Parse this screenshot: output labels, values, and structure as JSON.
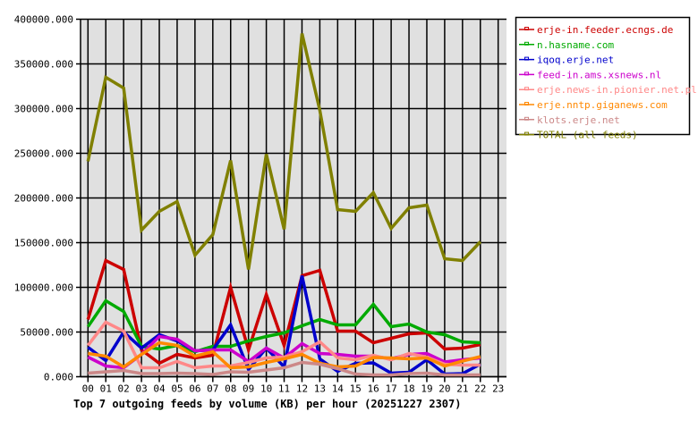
{
  "chart_data": {
    "type": "line",
    "title": "Top 7 outgoing feeds by volume (KB) per hour (20251227 2307)",
    "xlabel": "",
    "ylabel": "",
    "ylim": [
      0,
      400000
    ],
    "y_ticks": [
      "0.000",
      "50000.000",
      "100000.000",
      "150000.000",
      "200000.000",
      "250000.000",
      "300000.000",
      "350000.000",
      "400000.000"
    ],
    "x": [
      "00",
      "01",
      "02",
      "03",
      "04",
      "05",
      "06",
      "07",
      "08",
      "09",
      "10",
      "11",
      "12",
      "13",
      "14",
      "15",
      "16",
      "17",
      "18",
      "19",
      "20",
      "21",
      "22",
      "23"
    ],
    "grid": true,
    "legend_position": "right-top",
    "series": [
      {
        "name": "erje-in.feeder.ecngs.de",
        "color": "#cc0000",
        "values": [
          64000,
          130000,
          120000,
          30000,
          15000,
          25000,
          21000,
          24000,
          100000,
          30000,
          92000,
          35000,
          113000,
          119000,
          51000,
          51000,
          38000,
          43000,
          48000,
          49000,
          31000,
          32000,
          36000
        ]
      },
      {
        "name": "n.hasname.com",
        "color": "#00aa00",
        "values": [
          56000,
          85000,
          73000,
          34000,
          31000,
          35000,
          28000,
          34000,
          34000,
          40000,
          45000,
          49000,
          57000,
          64000,
          58000,
          58000,
          81000,
          56000,
          59000,
          50000,
          47000,
          39000,
          38000
        ]
      },
      {
        "name": "iqoq.erje.net",
        "color": "#0000cc",
        "values": [
          33000,
          18000,
          50000,
          32000,
          47000,
          40000,
          29000,
          30000,
          58000,
          8000,
          32000,
          11000,
          113000,
          20000,
          6000,
          15000,
          15500,
          4000,
          5000,
          19000,
          3000,
          3500,
          14000
        ]
      },
      {
        "name": "feed-in.ams.xsnews.nl",
        "color": "#cc00cc",
        "values": [
          22000,
          12000,
          10000,
          25000,
          45000,
          42000,
          29000,
          30000,
          30000,
          17000,
          32000,
          21000,
          37000,
          26000,
          25000,
          23000,
          23000,
          20000,
          25000,
          26000,
          16500,
          19000,
          21000
        ]
      },
      {
        "name": "erje.news-in.pionier.net.pl",
        "color": "#ff8888",
        "values": [
          35000,
          61000,
          51000,
          10000,
          10000,
          17000,
          10000,
          12000,
          12000,
          16000,
          21000,
          22000,
          28000,
          39000,
          21000,
          19000,
          24000,
          19000,
          26000,
          22000,
          14000,
          13000,
          13000
        ]
      },
      {
        "name": "erje.nntp.giganews.com",
        "color": "#ff8800",
        "values": [
          26000,
          23000,
          11000,
          25000,
          38000,
          35000,
          23000,
          28000,
          10000,
          11000,
          16000,
          20000,
          25000,
          15000,
          11000,
          12000,
          21500,
          21000,
          20000,
          21000,
          12000,
          17500,
          22500
        ]
      },
      {
        "name": "klots.erje.net",
        "color": "#cc8888",
        "values": [
          4000,
          5500,
          7000,
          3500,
          3500,
          4000,
          3500,
          2500,
          5500,
          5000,
          7500,
          10000,
          16000,
          14000,
          9000,
          3000,
          2000,
          2000,
          3500,
          4000,
          2000,
          2000,
          2000
        ]
      },
      {
        "name": "TOTAL (all feeds)",
        "color": "#808000",
        "values": [
          241000,
          335000,
          323000,
          164000,
          185000,
          196000,
          136000,
          159000,
          242000,
          120000,
          249000,
          165000,
          384000,
          298000,
          187000,
          185000,
          206000,
          166000,
          189000,
          192000,
          132000,
          130000,
          151000
        ]
      }
    ]
  },
  "plot": {
    "background": "#e0e0e0",
    "grid_color": "#000000"
  }
}
